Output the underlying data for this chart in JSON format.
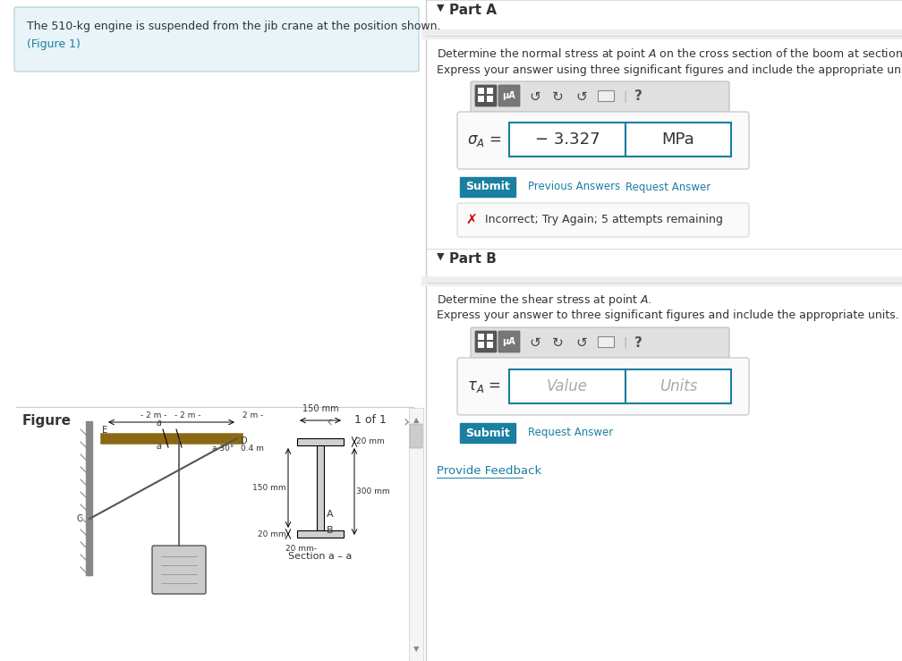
{
  "bg_color": "#ffffff",
  "left_panel_bg": "#e8f4f8",
  "left_panel_text": "The 510-kg engine is suspended from the jib crane at the position shown.",
  "left_panel_link": "(Figure 1)",
  "figure_label": "Figure",
  "figure_nav": "1 of 1",
  "part_a_title": "Part A",
  "part_a_q2": "Express your answer using three significant figures and include the appropriate units",
  "sigma_value": "− 3.327",
  "sigma_unit": "MPa",
  "submit_color": "#1a7fa0",
  "submit_text": "Submit",
  "prev_answers": "Previous Answers",
  "req_answer_a": "Request Answer",
  "incorrect_text": "Incorrect; Try Again; 5 attempts remaining",
  "part_b_title": "Part B",
  "part_b_q2": "Express your answer to three significant figures and include the appropriate units.",
  "tau_value_placeholder": "Value",
  "tau_unit_placeholder": "Units",
  "req_answer_b": "Request Answer",
  "provide_feedback": "Provide Feedback",
  "toolbar_bg": "#e0e0e0",
  "input_border": "#1a7fa0",
  "error_x_color": "#cc0000",
  "link_color": "#1a7fa0",
  "text_color": "#333333"
}
